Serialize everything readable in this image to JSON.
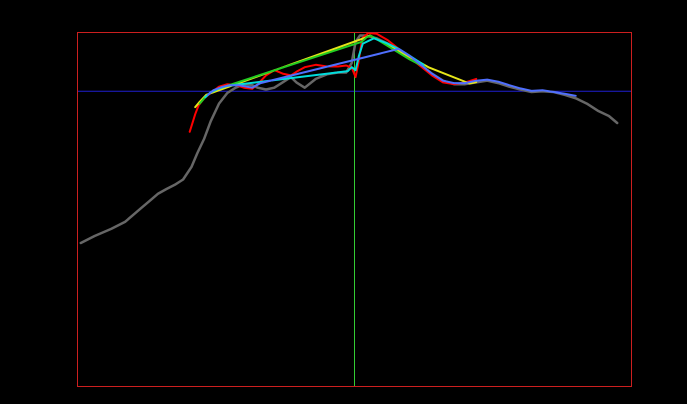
{
  "chart_data": {
    "type": "line",
    "title": "",
    "xlabel": "",
    "ylabel": "",
    "xlim": [
      0,
      100
    ],
    "ylim": [
      0,
      100
    ],
    "grid": false,
    "legend": "none",
    "reference_lines": {
      "horizontal": {
        "y": 83.5,
        "color": "#1f1fd0"
      },
      "vertical": {
        "x": 50,
        "color": "#33cc33"
      }
    },
    "series": [
      {
        "color": "#666666",
        "x": [
          0.5,
          3,
          6,
          8.5,
          10,
          11.5,
          13,
          14.5,
          16,
          17.5,
          19,
          20.5,
          21.6,
          22.8,
          24,
          25.5,
          27,
          28.5,
          30,
          31.5,
          32.5,
          34,
          35.5,
          37,
          38.5,
          39.5,
          41,
          43,
          45,
          47,
          48.5,
          49.5,
          50.2,
          51,
          52,
          54,
          56,
          58,
          60,
          62,
          64,
          66,
          68,
          70,
          72,
          74,
          76,
          78,
          80,
          82,
          84,
          86,
          88,
          90,
          92,
          94,
          96,
          97.5
        ],
        "y": [
          40.5,
          42.5,
          44.5,
          46.5,
          48.5,
          50.5,
          52.5,
          54.5,
          55.8,
          57,
          58.5,
          62,
          66,
          70,
          75,
          80,
          83,
          84.5,
          85.5,
          85.2,
          84.5,
          84,
          84.5,
          86,
          87.5,
          86,
          84.5,
          87,
          88.3,
          88.8,
          88.8,
          91.5,
          97.5,
          99.3,
          99.3,
          98.5,
          97,
          95,
          93,
          91,
          88.5,
          86.5,
          85.5,
          85.5,
          86,
          86.5,
          85.8,
          84.8,
          84,
          83.3,
          83.5,
          83.3,
          82.5,
          81.5,
          80,
          78,
          76.5,
          74.5
        ]
      },
      {
        "color": "#ff0000",
        "x": [
          20.2,
          20.6,
          21.2,
          21.8,
          22.8,
          24,
          25.5,
          27,
          28.5,
          30,
          31.5,
          32.5,
          34,
          35.5,
          37,
          38.5,
          39.5,
          41,
          43,
          45,
          47,
          48.5,
          49.5,
          50.2,
          50.7,
          51.4,
          52.5,
          54,
          56,
          58,
          60,
          62,
          64,
          66,
          68,
          70,
          72
        ],
        "y": [
          72,
          74,
          77,
          79.5,
          81.5,
          83,
          84.8,
          85.5,
          85.3,
          84.5,
          84.2,
          85.5,
          88,
          89.5,
          88.5,
          88,
          89,
          90.3,
          91,
          90.5,
          90.5,
          90.8,
          90.2,
          87.5,
          91.5,
          98.5,
          100,
          99.8,
          98,
          95.5,
          93,
          90.5,
          88,
          86,
          85.5,
          86,
          87
        ]
      },
      {
        "color": "#e6e619",
        "x": [
          21.2,
          22,
          23.2,
          52,
          52.8,
          62,
          63.5,
          70.8,
          72
        ],
        "y": [
          79,
          80.5,
          82.5,
          98.7,
          99.3,
          91.5,
          90.2,
          85.7,
          86.1
        ]
      },
      {
        "color": "#22cc22",
        "x": [
          22,
          23,
          24,
          25.5,
          51.3,
          52.2,
          53,
          60,
          61.5,
          62.8
        ],
        "y": [
          80,
          81.8,
          83.2,
          84.3,
          97.5,
          98.8,
          99.2,
          92.5,
          91.3,
          90.3
        ]
      },
      {
        "color": "#00dddd",
        "x": [
          23,
          24,
          25.5,
          27,
          48.8,
          49.5,
          50.2,
          50.8,
          51.5,
          53.5,
          56,
          58,
          60,
          62.5
        ],
        "y": [
          81.8,
          83.2,
          84.3,
          85,
          89.2,
          90.3,
          89.5,
          93.5,
          97,
          98.5,
          97,
          95.5,
          93.5,
          91
        ]
      },
      {
        "color": "#4f6fff",
        "x": [
          23.5,
          24.5,
          26,
          27.5,
          29,
          30.5,
          31.5,
          33,
          58,
          60,
          62,
          64,
          66,
          68,
          70,
          72,
          74,
          76,
          78,
          80,
          82,
          84,
          86,
          88,
          90
        ],
        "y": [
          82.5,
          83.8,
          84.7,
          85.2,
          85.2,
          84.8,
          84.5,
          85.8,
          95.5,
          93.5,
          91,
          88.5,
          86.5,
          85.8,
          85.8,
          86.5,
          86.8,
          86.2,
          85.2,
          84.3,
          83.6,
          83.8,
          83.3,
          82.8,
          82.2
        ]
      }
    ]
  }
}
